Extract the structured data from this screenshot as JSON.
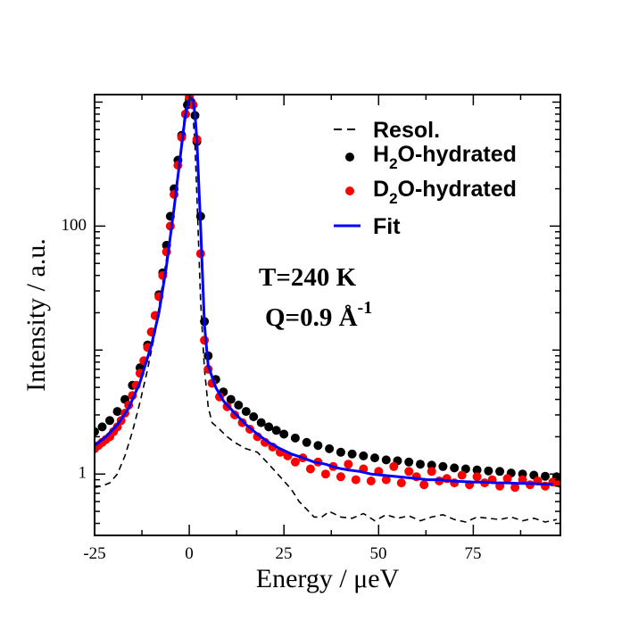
{
  "chart_data": {
    "type": "line",
    "title": "",
    "xlabel": "Energy / μeV",
    "ylabel": "Intensity / a.u.",
    "xlim": [
      -25,
      98
    ],
    "ylim": [
      0.32,
      1150
    ],
    "yscale": "log",
    "x_ticks": [
      -25,
      0,
      25,
      50,
      75
    ],
    "x_tick_labels": [
      "-25",
      "0",
      "25",
      "50",
      "75"
    ],
    "y_ticks": [
      1,
      100
    ],
    "y_tick_labels": [
      "1",
      "100"
    ],
    "annotation_line1": "T=240 K",
    "annotation_line2_prefix": "Q=0.9 Å",
    "annotation_line2_sup": "-1",
    "legend": {
      "position": "top-right",
      "entries": [
        {
          "name": "Resol.",
          "label": "Resol.",
          "sub": "",
          "rest": "",
          "style": "dashed-line",
          "color": "#000000"
        },
        {
          "name": "H2O-hydrated",
          "label": "H",
          "sub": "2",
          "rest": "O-hydrated",
          "style": "marker",
          "color": "#000000"
        },
        {
          "name": "D2O-hydrated",
          "label": "D",
          "sub": "2",
          "rest": "O-hydrated",
          "style": "marker",
          "color": "#ff0000"
        },
        {
          "name": "Fit",
          "label": "Fit",
          "sub": "",
          "rest": "",
          "style": "line",
          "color": "#0000ff"
        }
      ]
    },
    "series": [
      {
        "name": "Resol.",
        "kind": "dashed-line",
        "color": "#000000",
        "x": [
          -25,
          -23,
          -21,
          -19,
          -17,
          -15,
          -13,
          -11,
          -9,
          -7,
          -5,
          -3,
          -2,
          -1,
          -0.5,
          0,
          0.5,
          1,
          1.5,
          2,
          3,
          4,
          5,
          6,
          8,
          10,
          12,
          15,
          18,
          21,
          24,
          27,
          29,
          31,
          33,
          35,
          37,
          40,
          43,
          46,
          49,
          52,
          55,
          58,
          61,
          64,
          67,
          70,
          73,
          76,
          79,
          82,
          85,
          88,
          91,
          94,
          97
        ],
        "y": [
          0.78,
          0.8,
          0.85,
          1.0,
          1.4,
          2.2,
          3.8,
          7,
          14,
          35,
          85,
          250,
          500,
          900,
          1050,
          1100,
          1000,
          800,
          450,
          180,
          25,
          7,
          3.5,
          2.6,
          2.3,
          2.0,
          1.8,
          1.6,
          1.5,
          1.2,
          0.95,
          0.75,
          0.6,
          0.52,
          0.45,
          0.45,
          0.5,
          0.45,
          0.44,
          0.48,
          0.42,
          0.47,
          0.44,
          0.46,
          0.42,
          0.45,
          0.47,
          0.43,
          0.41,
          0.45,
          0.44,
          0.43,
          0.45,
          0.42,
          0.44,
          0.41,
          0.43
        ]
      },
      {
        "name": "H2O-hydrated",
        "kind": "marker",
        "color": "#000000",
        "x": [
          -25,
          -23,
          -21,
          -19,
          -17,
          -15,
          -13,
          -11,
          -10,
          -9,
          -8,
          -7,
          -6,
          -5,
          -4,
          -3,
          -2,
          -1,
          -0.5,
          0,
          0.5,
          1,
          1.5,
          2,
          3,
          4,
          5,
          7,
          9,
          11,
          13,
          15,
          17,
          19,
          21,
          23,
          25,
          28,
          31,
          34,
          37,
          40,
          43,
          46,
          49,
          52,
          55,
          58,
          61,
          64,
          67,
          70,
          73,
          76,
          79,
          82,
          85,
          88,
          91,
          94,
          97
        ],
        "y": [
          2.2,
          2.4,
          2.7,
          3.2,
          4.0,
          5.2,
          7.2,
          11,
          14,
          19,
          28,
          42,
          70,
          120,
          200,
          340,
          540,
          800,
          950,
          1050,
          1000,
          950,
          780,
          480,
          120,
          17,
          9,
          5.8,
          4.6,
          4.0,
          3.6,
          3.2,
          2.9,
          2.6,
          2.4,
          2.25,
          2.1,
          1.95,
          1.8,
          1.7,
          1.6,
          1.5,
          1.45,
          1.4,
          1.35,
          1.3,
          1.28,
          1.25,
          1.2,
          1.18,
          1.15,
          1.12,
          1.1,
          1.08,
          1.06,
          1.05,
          1.02,
          1.0,
          0.98,
          0.96,
          0.95
        ]
      },
      {
        "name": "D2O-hydrated",
        "kind": "marker",
        "color": "#ff0000",
        "x": [
          -25,
          -24,
          -23,
          -22,
          -21,
          -20,
          -19,
          -18,
          -17,
          -16,
          -15,
          -14,
          -13,
          -12,
          -11,
          -10,
          -9,
          -8,
          -7,
          -6,
          -5,
          -4,
          -3,
          -2,
          -1,
          0,
          1,
          2,
          3,
          4,
          5,
          6,
          8,
          10,
          12,
          14,
          16,
          18,
          20,
          22,
          24,
          26,
          28,
          30,
          32,
          34,
          36,
          38,
          40,
          42,
          44,
          46,
          48,
          50,
          52,
          54,
          56,
          58,
          60,
          62,
          64,
          66,
          68,
          70,
          72,
          74,
          76,
          78,
          80,
          82,
          84,
          86,
          88,
          90,
          92,
          94,
          96,
          98
        ],
        "y": [
          1.6,
          1.7,
          1.8,
          1.9,
          2.0,
          2.2,
          2.4,
          2.7,
          3.1,
          3.6,
          4.3,
          5.2,
          6.5,
          8.2,
          10.5,
          14,
          19,
          27,
          40,
          62,
          100,
          180,
          310,
          520,
          800,
          1100,
          950,
          500,
          60,
          12,
          7,
          5.4,
          4.2,
          3.5,
          3.0,
          2.6,
          2.3,
          2.0,
          1.8,
          1.65,
          1.5,
          1.4,
          1.25,
          1.35,
          1.1,
          1.25,
          1.0,
          1.15,
          0.95,
          1.2,
          0.9,
          1.1,
          0.88,
          1.05,
          0.9,
          1.15,
          0.85,
          1.05,
          0.95,
          0.82,
          1.05,
          0.88,
          0.92,
          0.85,
          0.98,
          0.82,
          0.95,
          0.85,
          0.9,
          0.8,
          0.92,
          0.78,
          0.9,
          0.82,
          0.88,
          0.8,
          0.86,
          0.84
        ]
      },
      {
        "name": "Fit",
        "kind": "line",
        "color": "#0000ff",
        "x": [
          -25,
          -22,
          -19,
          -16,
          -13,
          -10,
          -8,
          -6,
          -4,
          -2,
          -1,
          0,
          0.5,
          1,
          1.5,
          2,
          3,
          4,
          5,
          7,
          9,
          12,
          15,
          18,
          21,
          24,
          27,
          30,
          33,
          36,
          39,
          42,
          45,
          48,
          51,
          54,
          57,
          60,
          63,
          66,
          69,
          72,
          75,
          78,
          81,
          84,
          87,
          90,
          93,
          96
        ],
        "y": [
          1.7,
          2.0,
          2.5,
          3.4,
          5.5,
          11,
          20,
          48,
          140,
          450,
          800,
          1050,
          1080,
          1020,
          800,
          500,
          100,
          16,
          7.5,
          5.0,
          3.9,
          3.1,
          2.5,
          2.1,
          1.8,
          1.6,
          1.45,
          1.35,
          1.25,
          1.2,
          1.12,
          1.08,
          1.05,
          1.0,
          0.98,
          0.96,
          0.94,
          0.92,
          0.9,
          0.9,
          0.88,
          0.87,
          0.86,
          0.86,
          0.85,
          0.85,
          0.84,
          0.84,
          0.83,
          0.83
        ]
      }
    ]
  }
}
